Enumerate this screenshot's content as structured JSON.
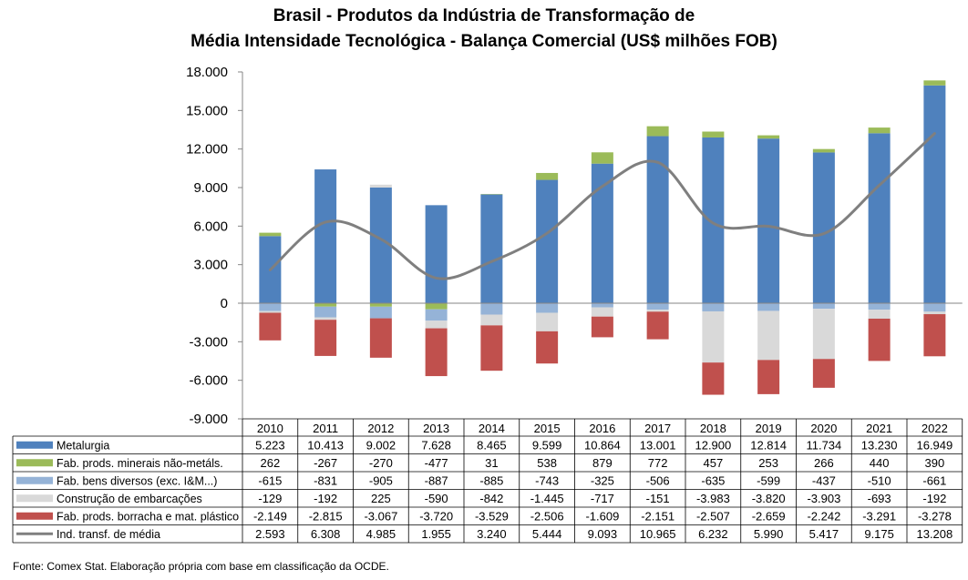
{
  "title_line1": "Brasil - Produtos da Indústria de Transformação de",
  "title_line2": "Média Intensidade Tecnológica - Balança Comercial (US$ milhões FOB)",
  "footer": "Fonte:  Comex Stat. Elaboração própria com base em classificação da OCDE.",
  "colors": {
    "metalurgia": "#4F81BD",
    "minerais": "#9BBB59",
    "bens_diversos": "#95B3D7",
    "embarcacoes": "#D9D9D9",
    "borracha": "#C0504D",
    "line": "#7F7F7F"
  },
  "chart_data": {
    "type": "bar",
    "stacked": true,
    "categories": [
      "2010",
      "2011",
      "2012",
      "2013",
      "2014",
      "2015",
      "2016",
      "2017",
      "2018",
      "2019",
      "2020",
      "2021",
      "2022"
    ],
    "ylim": [
      -9000,
      18000
    ],
    "yticks": [
      18000,
      15000,
      12000,
      9000,
      6000,
      3000,
      0,
      -3000,
      -6000,
      -9000
    ],
    "ytick_labels": [
      "18.000",
      "15.000",
      "12.000",
      "9.000",
      "6.000",
      "3.000",
      "0",
      "-3.000",
      "-6.000",
      "-9.000"
    ],
    "legend_placement": "data table below chart",
    "series": [
      {
        "name": "Metalurgia",
        "type": "bar",
        "color_key": "metalurgia",
        "values": [
          5223,
          10413,
          9002,
          7628,
          8465,
          9599,
          10864,
          13001,
          12900,
          12814,
          11734,
          13230,
          16949
        ],
        "labels": [
          "5.223",
          "10.413",
          "9.002",
          "7.628",
          "8.465",
          "9.599",
          "10.864",
          "13.001",
          "12.900",
          "12.814",
          "11.734",
          "13.230",
          "16.949"
        ]
      },
      {
        "name": "Fab. prods. minerais não-metáls.",
        "type": "bar",
        "color_key": "minerais",
        "values": [
          262,
          -267,
          -270,
          -477,
          31,
          538,
          879,
          772,
          457,
          253,
          266,
          440,
          390
        ],
        "labels": [
          "262",
          "-267",
          "-270",
          "-477",
          "31",
          "538",
          "879",
          "772",
          "457",
          "253",
          "266",
          "440",
          "390"
        ]
      },
      {
        "name": "Fab. bens diversos (exc. I&M...)",
        "type": "bar",
        "color_key": "bens_diversos",
        "values": [
          -615,
          -831,
          -905,
          -887,
          -885,
          -743,
          -325,
          -506,
          -635,
          -599,
          -437,
          -510,
          -661
        ],
        "labels": [
          "-615",
          "-831",
          "-905",
          "-887",
          "-885",
          "-743",
          "-325",
          "-506",
          "-635",
          "-599",
          "-437",
          "-510",
          "-661"
        ]
      },
      {
        "name": "Construção de embarcações",
        "type": "bar",
        "color_key": "embarcacoes",
        "values": [
          -129,
          -192,
          225,
          -590,
          -842,
          -1445,
          -717,
          -151,
          -3983,
          -3820,
          -3903,
          -693,
          -192
        ],
        "labels": [
          "-129",
          "-192",
          "225",
          "-590",
          "-842",
          "-1.445",
          "-717",
          "-151",
          "-3.983",
          "-3.820",
          "-3.903",
          "-693",
          "-192"
        ]
      },
      {
        "name": "Fab. prods. borracha e  mat. plástico",
        "type": "bar",
        "color_key": "borracha",
        "values": [
          -2149,
          -2815,
          -3067,
          -3720,
          -3529,
          -2506,
          -1609,
          -2151,
          -2507,
          -2659,
          -2242,
          -3291,
          -3278
        ],
        "labels": [
          "-2.149",
          "-2.815",
          "-3.067",
          "-3.720",
          "-3.529",
          "-2.506",
          "-1.609",
          "-2.151",
          "-2.507",
          "-2.659",
          "-2.242",
          "-3.291",
          "-3.278"
        ]
      },
      {
        "name": "Ind. transf. de média",
        "type": "line",
        "color_key": "line",
        "values": [
          2593,
          6308,
          4985,
          1955,
          3240,
          5444,
          9093,
          10965,
          6232,
          5990,
          5417,
          9175,
          13208
        ],
        "labels": [
          "2.593",
          "6.308",
          "4.985",
          "1.955",
          "3.240",
          "5.444",
          "9.093",
          "10.965",
          "6.232",
          "5.990",
          "5.417",
          "9.175",
          "13.208"
        ]
      }
    ]
  }
}
